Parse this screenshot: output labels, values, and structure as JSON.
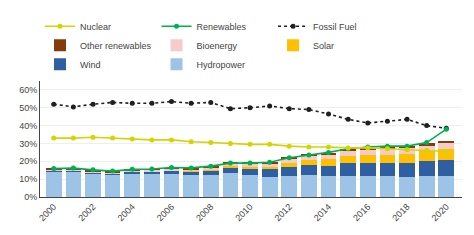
{
  "chart_data": {
    "type": "bar",
    "stacked": true,
    "x": [
      2000,
      2001,
      2002,
      2003,
      2004,
      2005,
      2006,
      2007,
      2008,
      2009,
      2010,
      2011,
      2012,
      2013,
      2014,
      2015,
      2016,
      2017,
      2018,
      2019,
      2020
    ],
    "series": [
      {
        "name": "Hydropower",
        "color": "#9dc3e6",
        "values": [
          14.5,
          14.5,
          13.2,
          12.5,
          13.0,
          12.8,
          13.0,
          12.2,
          12.5,
          13.5,
          12.2,
          11.2,
          12.0,
          12.5,
          11.8,
          12.0,
          11.8,
          11.5,
          11.0,
          11.5,
          11.5
        ]
      },
      {
        "name": "Wind",
        "color": "#2e5fa3",
        "values": [
          0.4,
          0.5,
          0.6,
          0.8,
          1.1,
          1.4,
          1.7,
          2.0,
          2.6,
          3.2,
          3.8,
          4.3,
          4.8,
          5.3,
          5.8,
          6.8,
          7.2,
          7.8,
          8.2,
          8.8,
          9.5
        ]
      },
      {
        "name": "Solar",
        "color": "#ffc000",
        "values": [
          0.0,
          0.0,
          0.0,
          0.0,
          0.0,
          0.05,
          0.05,
          0.15,
          0.3,
          0.5,
          0.8,
          1.5,
          2.5,
          3.0,
          3.5,
          4.0,
          4.5,
          4.5,
          5.0,
          5.5,
          6.0
        ]
      },
      {
        "name": "Bioenergy",
        "color": "#f8cbcb",
        "values": [
          0.5,
          0.5,
          0.6,
          0.7,
          0.8,
          0.9,
          1.0,
          1.2,
          1.3,
          1.5,
          1.7,
          2.0,
          2.3,
          2.5,
          2.8,
          3.0,
          3.2,
          3.3,
          3.3,
          3.3,
          3.5
        ]
      },
      {
        "name": "Other renewables",
        "color": "#843c0c",
        "values": [
          0.3,
          0.3,
          0.3,
          0.4,
          0.4,
          0.4,
          0.5,
          0.5,
          0.5,
          0.6,
          0.6,
          0.7,
          0.7,
          0.8,
          0.9,
          0.9,
          1.0,
          1.0,
          1.0,
          1.0,
          1.0
        ]
      },
      {
        "name": "Fossil Fuel",
        "type": "line",
        "color": "#1f1f1f",
        "marker": "circle",
        "line_style": "dotted",
        "values": [
          52.0,
          50.5,
          52.0,
          53.0,
          52.5,
          52.5,
          53.5,
          52.5,
          53.0,
          49.5,
          50.0,
          51.0,
          49.5,
          49.0,
          46.5,
          43.5,
          41.5,
          42.5,
          43.5,
          40.0,
          38.5
        ]
      },
      {
        "name": "Renewables",
        "type": "line",
        "color": "#00b050",
        "marker": "circle",
        "line_style": "solid",
        "values": [
          16.0,
          16.2,
          15.2,
          14.5,
          15.5,
          15.7,
          16.5,
          16.3,
          17.3,
          19.0,
          19.0,
          19.5,
          22.0,
          23.5,
          25.0,
          27.0,
          28.0,
          28.5,
          28.5,
          30.5,
          38.0
        ]
      },
      {
        "name": "Nuclear",
        "type": "line",
        "color": "#d4d400",
        "marker": "circle",
        "line_style": "solid",
        "values": [
          33.0,
          33.0,
          33.5,
          33.0,
          32.5,
          32.0,
          32.0,
          31.0,
          30.5,
          30.0,
          29.5,
          29.5,
          28.5,
          28.0,
          28.0,
          27.5,
          27.5,
          27.0,
          26.5,
          26.0,
          25.5
        ]
      }
    ],
    "xlim": [
      1999.3,
      2020.8
    ],
    "xticks": [
      2000,
      2002,
      2004,
      2006,
      2008,
      2010,
      2012,
      2014,
      2016,
      2018,
      2020
    ],
    "ylim": [
      0,
      65
    ],
    "yticks": [
      {
        "value": 0,
        "label": "0%"
      },
      {
        "value": 10,
        "label": "10%"
      },
      {
        "value": 20,
        "label": "20%"
      },
      {
        "value": 30,
        "label": "30%"
      },
      {
        "value": 40,
        "label": "40%"
      },
      {
        "value": 50,
        "label": "50%"
      },
      {
        "value": 60,
        "label": "60%"
      }
    ],
    "grid": true,
    "legend": "top"
  }
}
